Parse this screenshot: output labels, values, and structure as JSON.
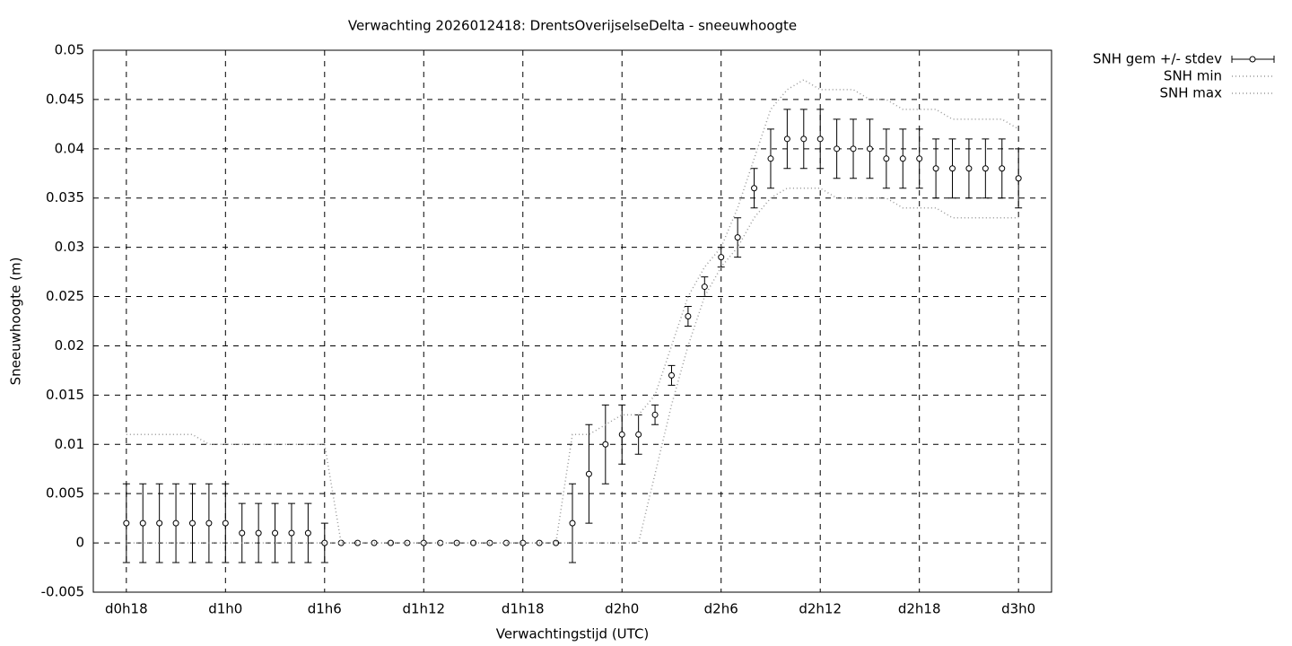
{
  "chart_data": {
    "type": "errorbar-line",
    "title": "Verwachting 2026012418: DrentsOverijselseDelta - sneeuwhoogte",
    "x_label": "Verwachtingstijd (UTC)",
    "y_label": "Sneeuwhoogte (m)",
    "x": [
      18,
      19,
      20,
      21,
      22,
      23,
      24,
      25,
      26,
      27,
      28,
      29,
      30,
      31,
      32,
      33,
      34,
      35,
      36,
      37,
      38,
      39,
      40,
      41,
      42,
      43,
      44,
      45,
      46,
      47,
      48,
      49,
      50,
      51,
      52,
      53,
      54,
      55,
      56,
      57,
      58,
      59,
      60,
      61,
      62,
      63,
      64,
      65,
      66,
      67,
      68,
      69,
      70,
      71,
      72
    ],
    "xlim": [
      16,
      74
    ],
    "xticks": [
      {
        "value": 18,
        "label": "d0h18"
      },
      {
        "value": 24,
        "label": "d1h0"
      },
      {
        "value": 30,
        "label": "d1h6"
      },
      {
        "value": 36,
        "label": "d1h12"
      },
      {
        "value": 42,
        "label": "d1h18"
      },
      {
        "value": 48,
        "label": "d2h0"
      },
      {
        "value": 54,
        "label": "d2h6"
      },
      {
        "value": 60,
        "label": "d2h12"
      },
      {
        "value": 66,
        "label": "d2h18"
      },
      {
        "value": 72,
        "label": "d3h0"
      }
    ],
    "ylim": [
      -0.005,
      0.05
    ],
    "yticks": [
      -0.005,
      0,
      0.005,
      0.01,
      0.015,
      0.02,
      0.025,
      0.03,
      0.035,
      0.04,
      0.045,
      0.05
    ],
    "grid": true,
    "legend": "outside-top-right",
    "series": [
      {
        "name": "SNH gem +/- stdev",
        "color": "#000000",
        "style": "errorbars",
        "values": [
          0.002,
          0.002,
          0.002,
          0.002,
          0.002,
          0.002,
          0.002,
          0.001,
          0.001,
          0.001,
          0.001,
          0.001,
          0,
          0,
          0,
          0,
          0,
          0,
          0,
          0,
          0,
          0,
          0,
          0,
          0,
          0,
          0,
          0.002,
          0.007,
          0.01,
          0.011,
          0.011,
          0.013,
          0.017,
          0.023,
          0.026,
          0.029,
          0.031,
          0.036,
          0.039,
          0.041,
          0.041,
          0.041,
          0.04,
          0.04,
          0.04,
          0.039,
          0.039,
          0.039,
          0.038,
          0.038,
          0.038,
          0.038,
          0.038,
          0.037
        ],
        "errors": [
          0.004,
          0.004,
          0.004,
          0.004,
          0.004,
          0.004,
          0.004,
          0.003,
          0.003,
          0.003,
          0.003,
          0.003,
          0.002,
          0,
          0,
          0,
          0,
          0,
          0,
          0,
          0,
          0,
          0,
          0,
          0,
          0,
          0,
          0.004,
          0.005,
          0.004,
          0.003,
          0.002,
          0.001,
          0.001,
          0.001,
          0.001,
          0.001,
          0.002,
          0.002,
          0.003,
          0.003,
          0.003,
          0.003,
          0.003,
          0.003,
          0.003,
          0.003,
          0.003,
          0.003,
          0.003,
          0.003,
          0.003,
          0.003,
          0.003,
          0.003
        ]
      },
      {
        "name": "SNH min",
        "color": "#999999",
        "style": "dotted",
        "values": [
          0,
          0,
          0,
          0,
          0,
          0,
          0,
          0,
          0,
          0,
          0,
          0,
          0,
          0,
          0,
          0,
          0,
          0,
          0,
          0,
          0,
          0,
          0,
          0,
          0,
          0,
          0,
          0,
          0,
          0,
          0,
          0,
          0.007,
          0.014,
          0.02,
          0.025,
          0.028,
          0.03,
          0.033,
          0.035,
          0.036,
          0.036,
          0.036,
          0.035,
          0.035,
          0.035,
          0.035,
          0.034,
          0.034,
          0.034,
          0.033,
          0.033,
          0.033,
          0.033,
          0.033
        ]
      },
      {
        "name": "SNH max",
        "color": "#999999",
        "style": "dotted",
        "values": [
          0.011,
          0.011,
          0.011,
          0.011,
          0.011,
          0.01,
          0.01,
          0.01,
          0.01,
          0.01,
          0.01,
          0.01,
          0.01,
          0,
          0,
          0,
          0,
          0,
          0,
          0,
          0,
          0,
          0,
          0,
          0,
          0,
          0,
          0.011,
          0.011,
          0.012,
          0.013,
          0.013,
          0.015,
          0.02,
          0.025,
          0.028,
          0.03,
          0.034,
          0.039,
          0.044,
          0.046,
          0.047,
          0.046,
          0.046,
          0.046,
          0.045,
          0.045,
          0.044,
          0.044,
          0.044,
          0.043,
          0.043,
          0.043,
          0.043,
          0.042
        ]
      }
    ]
  }
}
